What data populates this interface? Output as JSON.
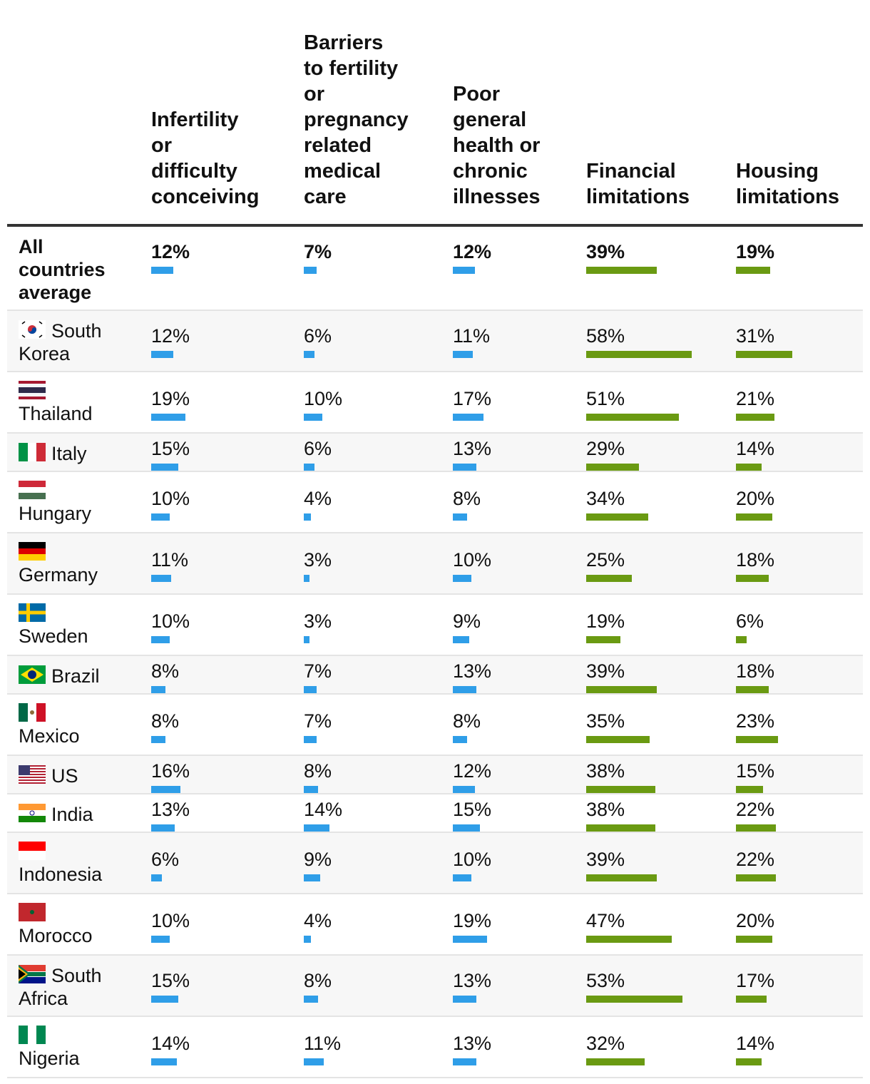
{
  "columns": [
    {
      "key": "infertility",
      "label": "Infertility or difficulty conceiving",
      "lines": [
        "Infertility",
        "or",
        "difficulty",
        "conceiving"
      ]
    },
    {
      "key": "barriers",
      "label": "Barriers to fertility or pregnancy related medical care",
      "lines": [
        "Barriers",
        "to fertility",
        "or",
        "pregnancy",
        "related",
        "medical",
        "care"
      ]
    },
    {
      "key": "health",
      "label": "Poor general health or chronic illnesses",
      "lines": [
        "Poor",
        "general",
        "health or",
        "chronic",
        "illnesses"
      ]
    },
    {
      "key": "financial",
      "label": "Financial limitations",
      "lines": [
        "Financial",
        "limitations"
      ]
    },
    {
      "key": "housing",
      "label": "Housing limitations",
      "lines": [
        "Housing",
        "limitations"
      ]
    }
  ],
  "colors": {
    "blue": "#2f9ee8",
    "green": "#6a9a12"
  },
  "chart_data": {
    "type": "table",
    "title": "",
    "categories": [
      "All countries average",
      "South Korea",
      "Thailand",
      "Italy",
      "Hungary",
      "Germany",
      "Sweden",
      "Brazil",
      "Mexico",
      "US",
      "India",
      "Indonesia",
      "Morocco",
      "South Africa",
      "Nigeria"
    ],
    "series": [
      {
        "name": "Infertility or difficulty conceiving",
        "color": "#2f9ee8",
        "values": [
          12,
          12,
          19,
          15,
          10,
          11,
          10,
          8,
          8,
          16,
          13,
          6,
          10,
          15,
          14
        ]
      },
      {
        "name": "Barriers to fertility or pregnancy related medical care",
        "color": "#2f9ee8",
        "values": [
          7,
          6,
          10,
          6,
          4,
          3,
          3,
          7,
          7,
          8,
          14,
          9,
          4,
          8,
          11
        ]
      },
      {
        "name": "Poor general health or chronic illnesses",
        "color": "#2f9ee8",
        "values": [
          12,
          11,
          17,
          13,
          8,
          10,
          9,
          13,
          8,
          12,
          15,
          10,
          19,
          13,
          13
        ]
      },
      {
        "name": "Financial limitations",
        "color": "#6a9a12",
        "values": [
          39,
          58,
          51,
          29,
          34,
          25,
          19,
          39,
          35,
          38,
          38,
          39,
          47,
          53,
          32
        ]
      },
      {
        "name": "Housing limitations",
        "color": "#6a9a12",
        "values": [
          19,
          31,
          21,
          14,
          20,
          18,
          6,
          18,
          23,
          15,
          22,
          22,
          20,
          17,
          14
        ]
      }
    ],
    "unit": "%"
  },
  "rows": [
    {
      "name": "All countries average",
      "lines": [
        "All",
        "countries",
        "average"
      ],
      "flag": "none",
      "values": [
        "12%",
        "7%",
        "12%",
        "39%",
        "19%"
      ]
    },
    {
      "name": "South Korea",
      "lines": [
        "South",
        "Korea"
      ],
      "flag": "south-korea",
      "values": [
        "12%",
        "6%",
        "11%",
        "58%",
        "31%"
      ]
    },
    {
      "name": "Thailand",
      "lines": [
        "Thailand"
      ],
      "flag": "thailand",
      "values": [
        "19%",
        "10%",
        "17%",
        "51%",
        "21%"
      ]
    },
    {
      "name": "Italy",
      "lines": [
        "Italy"
      ],
      "flag": "italy",
      "values": [
        "15%",
        "6%",
        "13%",
        "29%",
        "14%"
      ]
    },
    {
      "name": "Hungary",
      "lines": [
        "Hungary"
      ],
      "flag": "hungary",
      "values": [
        "10%",
        "4%",
        "8%",
        "34%",
        "20%"
      ]
    },
    {
      "name": "Germany",
      "lines": [
        "Germany"
      ],
      "flag": "germany",
      "values": [
        "11%",
        "3%",
        "10%",
        "25%",
        "18%"
      ]
    },
    {
      "name": "Sweden",
      "lines": [
        "Sweden"
      ],
      "flag": "sweden",
      "values": [
        "10%",
        "3%",
        "9%",
        "19%",
        "6%"
      ]
    },
    {
      "name": "Brazil",
      "lines": [
        "Brazil"
      ],
      "flag": "brazil",
      "values": [
        "8%",
        "7%",
        "13%",
        "39%",
        "18%"
      ]
    },
    {
      "name": "Mexico",
      "lines": [
        "Mexico"
      ],
      "flag": "mexico",
      "values": [
        "8%",
        "7%",
        "8%",
        "35%",
        "23%"
      ]
    },
    {
      "name": "US",
      "lines": [
        "US"
      ],
      "flag": "us",
      "values": [
        "16%",
        "8%",
        "12%",
        "38%",
        "15%"
      ]
    },
    {
      "name": "India",
      "lines": [
        "India"
      ],
      "flag": "india",
      "values": [
        "13%",
        "14%",
        "15%",
        "38%",
        "22%"
      ]
    },
    {
      "name": "Indonesia",
      "lines": [
        "Indonesia"
      ],
      "flag": "indonesia",
      "values": [
        "6%",
        "9%",
        "10%",
        "39%",
        "22%"
      ]
    },
    {
      "name": "Morocco",
      "lines": [
        "Morocco"
      ],
      "flag": "morocco",
      "values": [
        "10%",
        "4%",
        "19%",
        "47%",
        "20%"
      ]
    },
    {
      "name": "South Africa",
      "lines": [
        "South",
        "Africa"
      ],
      "flag": "south-africa",
      "values": [
        "15%",
        "8%",
        "13%",
        "53%",
        "17%"
      ]
    },
    {
      "name": "Nigeria",
      "lines": [
        "Nigeria"
      ],
      "flag": "nigeria",
      "values": [
        "14%",
        "11%",
        "13%",
        "32%",
        "14%"
      ]
    }
  ]
}
